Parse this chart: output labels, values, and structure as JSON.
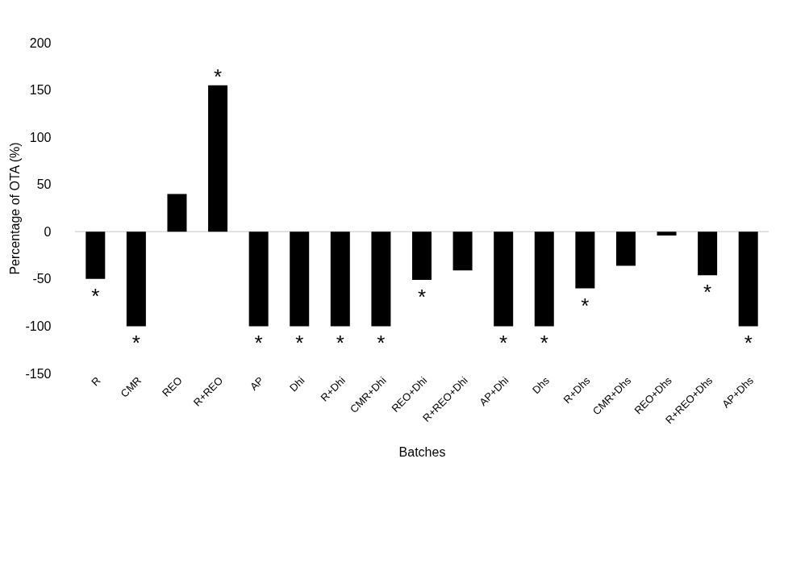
{
  "chart_data": {
    "type": "bar",
    "xlabel": "Batches",
    "ylabel": "Percentage of OTA (%)",
    "categories": [
      "R",
      "CMR",
      "REO",
      "R+REO",
      "AP",
      "Dhi",
      "R+Dhi",
      "CMR+Dhi",
      "REO+Dhi",
      "R+REO+Dhi",
      "AP+Dhi",
      "Dhs",
      "R+Dhs",
      "CMR+Dhs",
      "REO+Dhs",
      "R+REO+Dhs",
      "AP+Dhs"
    ],
    "values": [
      -50,
      -100,
      40,
      155,
      -100,
      -100,
      -100,
      -100,
      -51,
      -41,
      -100,
      -100,
      -60,
      -36,
      -4,
      -46,
      -100
    ],
    "color": "#000000",
    "ylim": [
      -150,
      200
    ],
    "yticks": [
      -150,
      -100,
      -50,
      0,
      50,
      100,
      150,
      200
    ],
    "grid": false,
    "ref_lines": [
      {
        "axis": "y",
        "value": 0,
        "color": "#d9d9d9"
      }
    ],
    "annotations": [
      {
        "text": "*",
        "x": "R",
        "y": -50
      },
      {
        "text": "*",
        "x": "CMR",
        "y": -100
      },
      {
        "text": "*",
        "x": "R+REO",
        "y": 155
      },
      {
        "text": "*",
        "x": "AP",
        "y": -100
      },
      {
        "text": "*",
        "x": "Dhi",
        "y": -100
      },
      {
        "text": "*",
        "x": "R+Dhi",
        "y": -100
      },
      {
        "text": "*",
        "x": "CMR+Dhi",
        "y": -100
      },
      {
        "text": "*",
        "x": "REO+Dhi",
        "y": -51
      },
      {
        "text": "*",
        "x": "AP+Dhi",
        "y": -100
      },
      {
        "text": "*",
        "x": "Dhs",
        "y": -100
      },
      {
        "text": "*",
        "x": "R+Dhs",
        "y": -60
      },
      {
        "text": "*",
        "x": "R+REO+Dhs",
        "y": -46
      },
      {
        "text": "*",
        "x": "AP+Dhs",
        "y": -100
      }
    ]
  }
}
